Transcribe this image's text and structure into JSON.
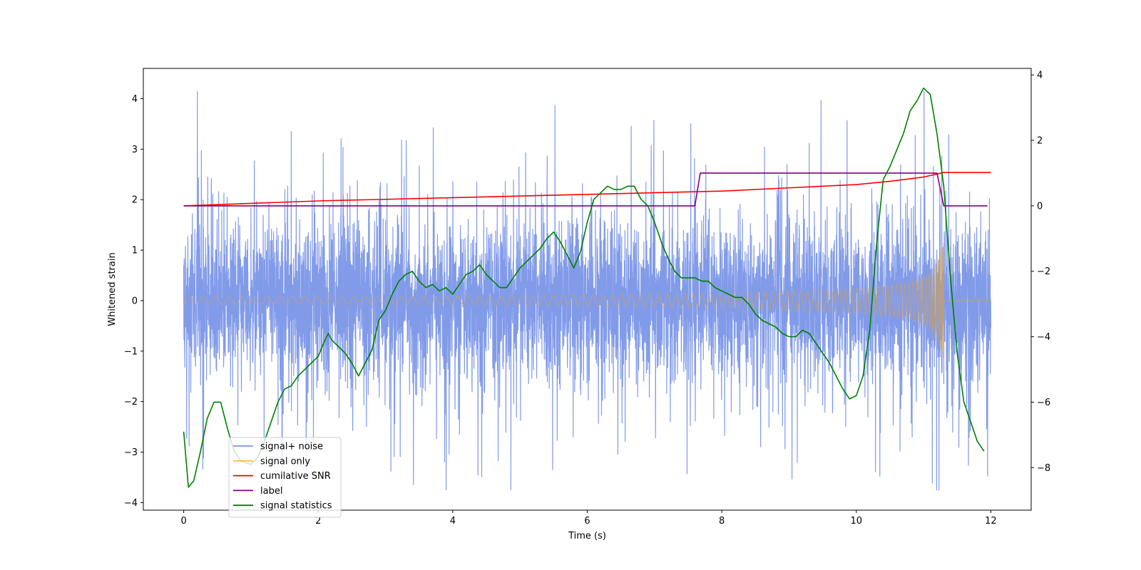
{
  "chart_data": {
    "type": "line",
    "title": "",
    "xlabel": "Time (s)",
    "ylabel": "Whitened strain",
    "y2label": "",
    "xlim": [
      -0.6,
      12.6
    ],
    "ylim": [
      -4.15,
      4.6
    ],
    "y2lim": [
      -9.3,
      4.2
    ],
    "xticks": [
      0,
      2,
      4,
      6,
      8,
      10,
      12
    ],
    "yticks": [
      -4,
      -3,
      -2,
      -1,
      0,
      1,
      2,
      3,
      4
    ],
    "y2ticks": [
      -8,
      -6,
      -4,
      -2,
      0,
      2,
      4
    ],
    "legend_position": "lower-left",
    "series": [
      {
        "name": "signal+ noise",
        "axis": "left",
        "color": "#7b96e8",
        "kind": "noise",
        "x_range": [
          0,
          12
        ],
        "core_std": 0.75,
        "approx_max": 4.15,
        "approx_min": -3.75
      },
      {
        "name": "signal only",
        "axis": "left",
        "color": "#ffa500",
        "kind": "chirp",
        "x_range": [
          0,
          12
        ],
        "merger_time": 11.3,
        "envelope": [
          [
            0,
            0.07
          ],
          [
            4,
            0.08
          ],
          [
            8,
            0.15
          ],
          [
            10,
            0.24
          ],
          [
            10.8,
            0.36
          ],
          [
            11.1,
            0.55
          ],
          [
            11.25,
            0.95
          ],
          [
            11.3,
            1.2
          ]
        ],
        "value_after_merger": 0
      },
      {
        "name": "cumilative SNR",
        "axis": "right",
        "color": "#ff0000",
        "x": [
          0,
          2,
          4,
          6,
          8,
          9,
          10,
          10.5,
          11,
          11.3,
          12
        ],
        "y": [
          0,
          0.15,
          0.25,
          0.35,
          0.45,
          0.55,
          0.65,
          0.75,
          0.88,
          1.02,
          1.02
        ]
      },
      {
        "name": "label",
        "axis": "right",
        "color": "#800080",
        "x": [
          0,
          7.6,
          7.68,
          11.2,
          11.3,
          11.95
        ],
        "y": [
          0,
          0,
          1,
          1,
          0,
          0
        ]
      },
      {
        "name": "signal statistics",
        "axis": "right",
        "color": "#008000",
        "x": [
          0,
          0.07,
          0.15,
          0.25,
          0.35,
          0.45,
          0.55,
          0.65,
          0.75,
          0.85,
          1.0,
          1.1,
          1.2,
          1.3,
          1.4,
          1.5,
          1.6,
          1.7,
          1.8,
          1.9,
          2.0,
          2.1,
          2.15,
          2.2,
          2.3,
          2.4,
          2.5,
          2.6,
          2.7,
          2.8,
          2.9,
          3.0,
          3.1,
          3.2,
          3.3,
          3.4,
          3.5,
          3.6,
          3.7,
          3.8,
          3.9,
          4.0,
          4.1,
          4.2,
          4.3,
          4.4,
          4.5,
          4.6,
          4.7,
          4.8,
          4.9,
          5.0,
          5.1,
          5.2,
          5.3,
          5.4,
          5.5,
          5.6,
          5.7,
          5.8,
          5.9,
          6.0,
          6.1,
          6.2,
          6.3,
          6.4,
          6.5,
          6.6,
          6.7,
          6.8,
          6.9,
          7.0,
          7.1,
          7.2,
          7.3,
          7.4,
          7.5,
          7.6,
          7.7,
          7.8,
          7.9,
          8.0,
          8.1,
          8.2,
          8.3,
          8.4,
          8.5,
          8.6,
          8.7,
          8.8,
          8.9,
          9.0,
          9.1,
          9.2,
          9.3,
          9.4,
          9.5,
          9.6,
          9.7,
          9.8,
          9.9,
          10.0,
          10.1,
          10.2,
          10.3,
          10.4,
          10.5,
          10.6,
          10.7,
          10.8,
          10.9,
          11.0,
          11.1,
          11.2,
          11.3,
          11.4,
          11.5,
          11.6,
          11.7,
          11.8,
          11.9
        ],
        "y": [
          -6.9,
          -8.6,
          -8.4,
          -7.5,
          -6.5,
          -6.0,
          -6.0,
          -6.8,
          -7.5,
          -7.8,
          -7.9,
          -7.7,
          -7.2,
          -6.6,
          -6.0,
          -5.6,
          -5.5,
          -5.2,
          -5.0,
          -4.8,
          -4.6,
          -4.1,
          -3.9,
          -4.1,
          -4.3,
          -4.5,
          -4.8,
          -5.2,
          -4.8,
          -4.4,
          -3.5,
          -3.2,
          -2.7,
          -2.3,
          -2.1,
          -2.0,
          -2.3,
          -2.5,
          -2.4,
          -2.6,
          -2.5,
          -2.7,
          -2.4,
          -2.1,
          -2.0,
          -1.8,
          -2.1,
          -2.3,
          -2.5,
          -2.5,
          -2.2,
          -1.9,
          -1.7,
          -1.5,
          -1.3,
          -1.0,
          -0.8,
          -1.1,
          -1.5,
          -1.9,
          -1.4,
          -0.5,
          0.2,
          0.4,
          0.6,
          0.5,
          0.5,
          0.6,
          0.6,
          0.2,
          0.0,
          -0.5,
          -1.1,
          -1.6,
          -2.0,
          -2.2,
          -2.2,
          -2.2,
          -2.3,
          -2.3,
          -2.5,
          -2.6,
          -2.7,
          -2.8,
          -2.8,
          -3.0,
          -3.3,
          -3.5,
          -3.6,
          -3.7,
          -3.9,
          -4.0,
          -4.0,
          -3.8,
          -3.9,
          -4.2,
          -4.5,
          -4.8,
          -5.2,
          -5.6,
          -5.9,
          -5.8,
          -5.2,
          -3.8,
          -1.2,
          0.8,
          1.2,
          1.7,
          2.2,
          2.9,
          3.2,
          3.6,
          3.4,
          2.2,
          0.6,
          -2.2,
          -4.5,
          -6.0,
          -6.6,
          -7.2,
          -7.5
        ]
      }
    ]
  }
}
